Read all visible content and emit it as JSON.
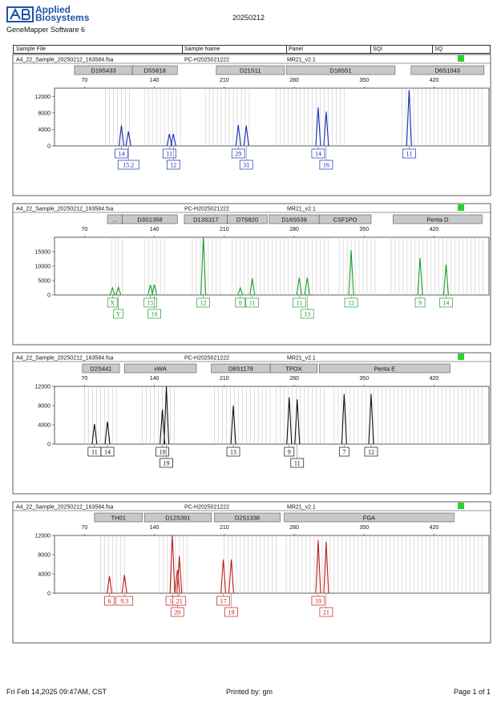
{
  "header": {
    "brand_line1": "Applied",
    "brand_line2": "Biosystems",
    "software": "GeneMapper Software 6",
    "date": "20250212",
    "columns": [
      "Sample File",
      "Sample Name",
      "Panel",
      "SQI",
      "SQ"
    ]
  },
  "footer": {
    "timestamp": "Fri Feb 14,2025 09:47AM, CST",
    "printed_by": "Printed by: gm",
    "page": "Page 1 of 1"
  },
  "chart_data": [
    {
      "type": "electropherogram",
      "sample_file": "A4_22_Sample_20250212_163584.fsa",
      "sample_name": "PC-H2025021222",
      "panel": "MR21_v2.1",
      "dye_color": "#1a2cb5",
      "status_color": "#2bd12b",
      "x_ticks": [
        70,
        140,
        210,
        280,
        350,
        420
      ],
      "x_range": [
        40,
        475
      ],
      "y_ticks": [
        0,
        4000,
        8000,
        12000
      ],
      "y_max": 14000,
      "markers": [
        {
          "name": "D19S433",
          "start": 60,
          "end": 118
        },
        {
          "name": "D5S818",
          "start": 118,
          "end": 163
        },
        {
          "name": "D21S11",
          "start": 202,
          "end": 270
        },
        {
          "name": "D18S51",
          "start": 272,
          "end": 381
        },
        {
          "name": "D6S1043",
          "start": 397,
          "end": 470
        }
      ],
      "bins": [
        [
          91,
          116
        ],
        [
          130,
          168
        ],
        [
          191,
          238
        ],
        [
          262,
          330
        ],
        [
          388,
          470
        ]
      ],
      "peaks": [
        {
          "label": "14",
          "x": 107,
          "height": 5000,
          "row": 1
        },
        {
          "label": "15.2",
          "x": 114,
          "height": 3500,
          "row": 2
        },
        {
          "label": "11",
          "x": 155,
          "height": 2900,
          "row": 1
        },
        {
          "label": "12",
          "x": 159,
          "height": 2900,
          "row": 2
        },
        {
          "label": "29",
          "x": 224,
          "height": 5100,
          "row": 1
        },
        {
          "label": "31",
          "x": 232,
          "height": 4900,
          "row": 2
        },
        {
          "label": "14",
          "x": 304,
          "height": 9300,
          "row": 1
        },
        {
          "label": "16",
          "x": 312,
          "height": 8300,
          "row": 2
        },
        {
          "label": "11",
          "x": 395,
          "height": 13500,
          "row": 1
        }
      ]
    },
    {
      "type": "electropherogram",
      "sample_file": "A4_22_Sample_20250212_163584.fsa",
      "sample_name": "PC-H2025021222",
      "panel": "MR21_v2.1",
      "dye_color": "#1aa02a",
      "status_color": "#2bd12b",
      "x_ticks": [
        70,
        140,
        210,
        280,
        350,
        420
      ],
      "x_range": [
        40,
        475
      ],
      "y_ticks": [
        0,
        5000,
        10000,
        15000
      ],
      "y_max": 20000,
      "markers": [
        {
          "name": "...",
          "start": 93,
          "end": 108
        },
        {
          "name": "D3S1358",
          "start": 108,
          "end": 163
        },
        {
          "name": "D13S317",
          "start": 170,
          "end": 213
        },
        {
          "name": "D7S820",
          "start": 213,
          "end": 253
        },
        {
          "name": "D16S539",
          "start": 255,
          "end": 305
        },
        {
          "name": "CSF1PO",
          "start": 305,
          "end": 357
        },
        {
          "name": "Penta D",
          "start": 379,
          "end": 468
        }
      ],
      "bins": [
        [
          97,
          101
        ],
        [
          104,
          108
        ],
        [
          130,
          150
        ],
        [
          178,
          208
        ],
        [
          218,
          260
        ],
        [
          262,
          316
        ],
        [
          325,
          364
        ],
        [
          377,
          470
        ]
      ],
      "peaks": [
        {
          "label": "X",
          "x": 98,
          "height": 2500,
          "row": 1
        },
        {
          "label": "Y",
          "x": 104,
          "height": 2700,
          "row": 2
        },
        {
          "label": "15",
          "x": 136,
          "height": 3500,
          "row": 1
        },
        {
          "label": "16",
          "x": 140,
          "height": 3600,
          "row": 2
        },
        {
          "label": "12",
          "x": 189,
          "height": 20000,
          "row": 1
        },
        {
          "label": "8",
          "x": 226,
          "height": 2500,
          "row": 1
        },
        {
          "label": "11",
          "x": 238,
          "height": 5800,
          "row": 1
        },
        {
          "label": "11",
          "x": 285,
          "height": 6000,
          "row": 1
        },
        {
          "label": "13",
          "x": 293,
          "height": 6000,
          "row": 2
        },
        {
          "label": "12",
          "x": 337,
          "height": 15500,
          "row": 1
        },
        {
          "label": "9",
          "x": 406,
          "height": 12800,
          "row": 1
        },
        {
          "label": "14",
          "x": 432,
          "height": 10500,
          "row": 1
        }
      ]
    },
    {
      "type": "electropherogram",
      "sample_file": "A4_22_Sample_20250212_163584.fsa",
      "sample_name": "PC-H2025021222",
      "panel": "MR21_v2.1",
      "dye_color": "#111111",
      "status_color": "#2bd12b",
      "x_ticks": [
        70,
        140,
        210,
        280,
        350,
        420
      ],
      "x_range": [
        40,
        475
      ],
      "y_ticks": [
        0,
        4000,
        8000,
        12000
      ],
      "y_max": 12000,
      "markers": [
        {
          "name": "D2S441",
          "start": 68,
          "end": 105
        },
        {
          "name": "vWA",
          "start": 110,
          "end": 182
        },
        {
          "name": "D8S1179",
          "start": 197,
          "end": 256
        },
        {
          "name": "TPOX",
          "start": 256,
          "end": 303
        },
        {
          "name": "Penta E",
          "start": 305,
          "end": 436
        }
      ],
      "bins": [
        [
          70,
          105
        ],
        [
          128,
          160
        ],
        [
          200,
          257
        ],
        [
          262,
          310
        ],
        [
          320,
          470
        ]
      ],
      "peaks": [
        {
          "label": "11",
          "x": 80,
          "height": 4200,
          "row": 1
        },
        {
          "label": "14",
          "x": 93,
          "height": 4700,
          "row": 1
        },
        {
          "label": "18",
          "x": 148,
          "height": 7200,
          "row": 1
        },
        {
          "label": "19",
          "x": 152,
          "height": 12000,
          "row": 2
        },
        {
          "label": "13",
          "x": 219,
          "height": 8000,
          "row": 1
        },
        {
          "label": "9",
          "x": 275,
          "height": 9700,
          "row": 1
        },
        {
          "label": "11",
          "x": 283,
          "height": 9300,
          "row": 2
        },
        {
          "label": "7",
          "x": 330,
          "height": 10400,
          "row": 1
        },
        {
          "label": "12",
          "x": 357,
          "height": 10400,
          "row": 1
        }
      ]
    },
    {
      "type": "electropherogram",
      "sample_file": "A4_22_Sample_20250212_163584.fsa",
      "sample_name": "PC-H2025021222",
      "panel": "MR21_v2.1",
      "dye_color": "#c41a1a",
      "status_color": "#2bd12b",
      "x_ticks": [
        70,
        140,
        210,
        280,
        350,
        420
      ],
      "x_range": [
        40,
        475
      ],
      "y_ticks": [
        0,
        4000,
        8000,
        12000
      ],
      "y_max": 12000,
      "markers": [
        {
          "name": "TH01",
          "start": 80,
          "end": 128
        },
        {
          "name": "D12S391",
          "start": 130,
          "end": 197
        },
        {
          "name": "D2S1338",
          "start": 200,
          "end": 266
        },
        {
          "name": "FGA",
          "start": 270,
          "end": 440
        }
      ],
      "bins": [
        [
          86,
          113
        ],
        [
          145,
          176
        ],
        [
          210,
          262
        ],
        [
          272,
          470
        ]
      ],
      "peaks": [
        {
          "label": "6",
          "x": 95,
          "height": 3500,
          "row": 1
        },
        {
          "label": "9.3",
          "x": 110,
          "height": 3800,
          "row": 1
        },
        {
          "label": "18",
          "x": 158,
          "height": 12000,
          "row": 1
        },
        {
          "label": "20",
          "x": 163,
          "height": 4800,
          "row": 2
        },
        {
          "label": "21",
          "x": 165,
          "height": 7700,
          "row": 1
        },
        {
          "label": "17",
          "x": 209,
          "height": 7000,
          "row": 1
        },
        {
          "label": "19",
          "x": 217,
          "height": 7000,
          "row": 2
        },
        {
          "label": "19",
          "x": 304,
          "height": 11000,
          "row": 1
        },
        {
          "label": "21",
          "x": 312,
          "height": 10700,
          "row": 2
        }
      ]
    }
  ]
}
